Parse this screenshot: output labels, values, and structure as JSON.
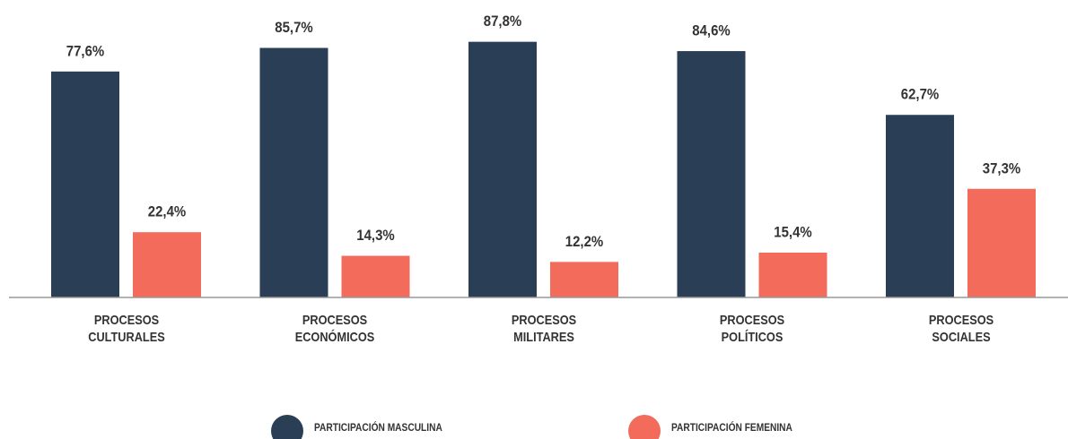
{
  "chart_data": {
    "type": "bar",
    "categories": [
      "PROCESOS\nCULTURALES",
      "PROCESOS\nECONÓMICOS",
      "PROCESOS\nMILITARES",
      "PROCESOS\nPOLÍTICOS",
      "PROCESOS\nSOCIALES"
    ],
    "series": [
      {
        "name": "PARTICIPACIÓN MASCULINA",
        "color": "#2a3e56",
        "values": [
          77.6,
          85.7,
          87.8,
          84.6,
          62.7
        ],
        "value_labels": [
          "77,6%",
          "85,7%",
          "87,8%",
          "84,6%",
          "62,7%"
        ]
      },
      {
        "name": "PARTICIPACIÓN FEMENINA",
        "color": "#f26b5b",
        "values": [
          22.4,
          14.3,
          12.2,
          15.4,
          37.3
        ],
        "value_labels": [
          "22,4%",
          "14,3%",
          "12,2%",
          "15,4%",
          "37,3%"
        ]
      }
    ],
    "ylim": [
      0,
      100
    ],
    "legend": "bottom"
  }
}
